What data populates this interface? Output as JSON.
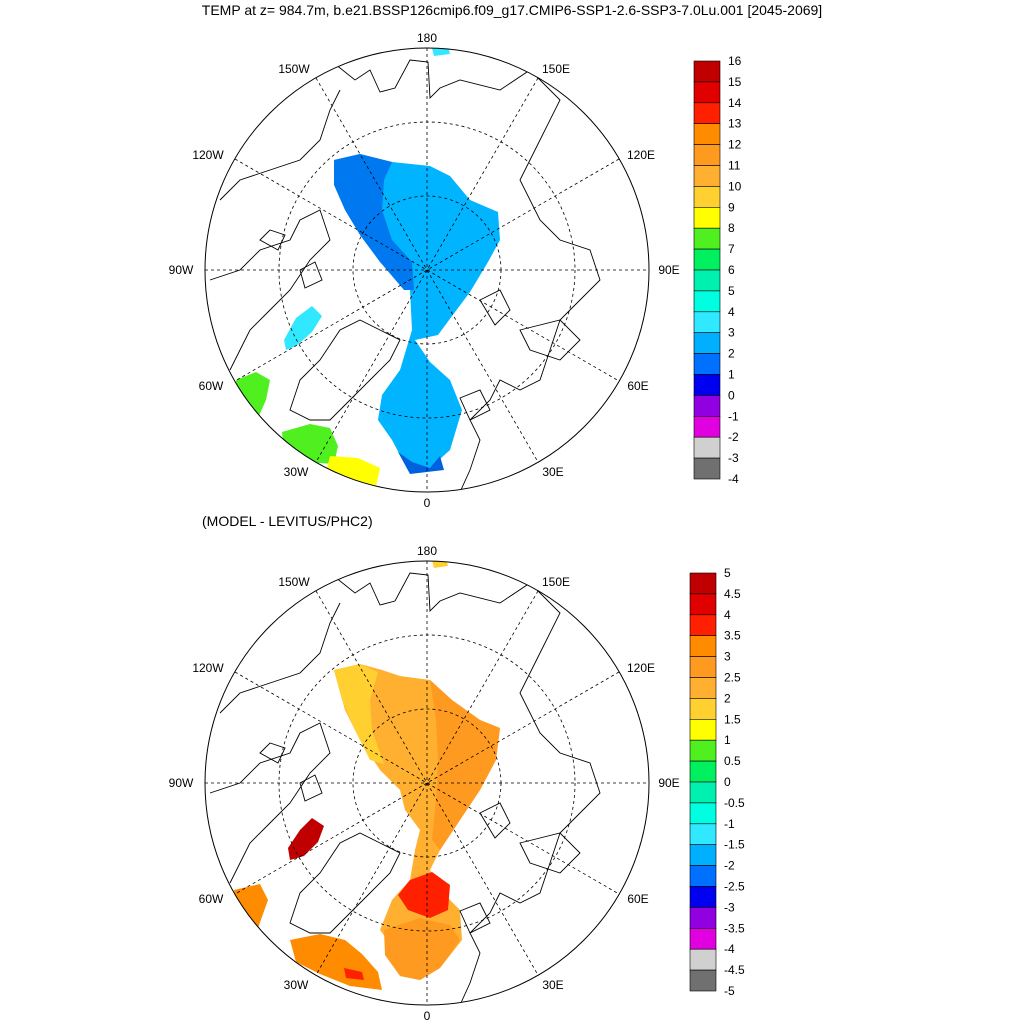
{
  "title": "TEMP at z= 984.7m, b.e21.BSSP126cmip6.f09_g17.CMIP6-SSP1-2.6-SSP3-7.0Lu.001 [2045-2069]",
  "subtitle": "(MODEL - LEVITUS/PHC2)",
  "lon_labels": {
    "top": "180",
    "top_left": "150W",
    "top_right": "150E",
    "upper_left": "120W",
    "upper_right": "120E",
    "left": "90W",
    "right": "90E",
    "lower_left": "60W",
    "lower_right": "60E",
    "bottom_left": "30W",
    "bottom_right": "30E",
    "bottom": "0"
  },
  "panel_top": {
    "colorbar_labels": [
      "16",
      "15",
      "14",
      "13",
      "12",
      "11",
      "10",
      "9",
      "8",
      "7",
      "6",
      "5",
      "4",
      "3",
      "2",
      "1",
      "0",
      "-1",
      "-2",
      "-3",
      "-4"
    ],
    "colorbar_colors": [
      "#c00000",
      "#e00000",
      "#ff2000",
      "#ff8c00",
      "#ff9a20",
      "#ffb030",
      "#ffd030",
      "#ffff00",
      "#50f020",
      "#00f060",
      "#00f0b0",
      "#00ffe0",
      "#30e8ff",
      "#00b0ff",
      "#0070ff",
      "#0000f0",
      "#9000e0",
      "#e000e0",
      "#d0d0d0",
      "#707070"
    ]
  },
  "panel_bottom": {
    "colorbar_labels": [
      "5",
      "4.5",
      "4",
      "3.5",
      "3",
      "2.5",
      "2",
      "1.5",
      "1",
      "0.5",
      "0",
      "-0.5",
      "-1",
      "-1.5",
      "-2",
      "-2.5",
      "-3",
      "-3.5",
      "-4",
      "-4.5",
      "-5"
    ],
    "colorbar_colors": [
      "#c00000",
      "#e00000",
      "#ff2000",
      "#ff8c00",
      "#ff9a20",
      "#ffb030",
      "#ffd030",
      "#ffff00",
      "#50f020",
      "#00f060",
      "#00f0b0",
      "#00ffe0",
      "#30e8ff",
      "#00b0ff",
      "#0070ff",
      "#0000f0",
      "#9000e0",
      "#e000e0",
      "#d0d0d0",
      "#707070"
    ]
  }
}
